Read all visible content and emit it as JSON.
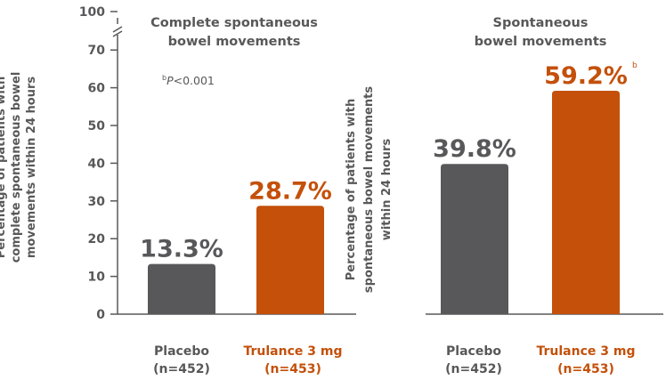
{
  "colors": {
    "placebo": "#58585a",
    "trulance": "#c4500a",
    "axis": "#58585a",
    "text": "#58585a"
  },
  "footnote": {
    "sup": "b",
    "text": "P<0.001"
  },
  "chart_data": [
    {
      "type": "bar",
      "title": [
        "Complete spontaneous",
        "bowel movements"
      ],
      "ylabel": [
        "Percentage of patients with",
        "complete spontaneous bowel",
        "movements within 24 hours"
      ],
      "ylim": [
        0,
        100
      ],
      "yticks": [
        0,
        10,
        20,
        30,
        40,
        50,
        60,
        70,
        100
      ],
      "axis_break": true,
      "categories": [
        {
          "name": "Placebo",
          "n": "(n=452)",
          "value": 13.3,
          "label": "13.3%",
          "color": "placebo",
          "sup": ""
        },
        {
          "name": "Trulance 3 mg",
          "n": "(n=453)",
          "value": 28.7,
          "label": "28.7%",
          "color": "trulance",
          "sup": ""
        }
      ]
    },
    {
      "type": "bar",
      "title": [
        "Spontaneous",
        "bowel movements"
      ],
      "ylabel": [
        "Percentage of patients with",
        "spontaneous bowel movements",
        "within 24 hours"
      ],
      "ylim": [
        0,
        100
      ],
      "categories": [
        {
          "name": "Placebo",
          "n": "(n=452)",
          "value": 39.8,
          "label": "39.8%",
          "color": "placebo",
          "sup": ""
        },
        {
          "name": "Trulance 3 mg",
          "n": "(n=453)",
          "value": 59.2,
          "label": "59.2%",
          "color": "trulance",
          "sup": "b"
        }
      ]
    }
  ]
}
